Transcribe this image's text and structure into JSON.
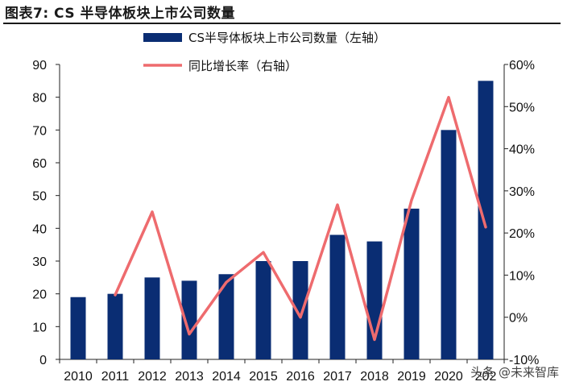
{
  "figure_title": "图表7:  CS 半导体板块上市公司数量",
  "watermark": "头条 @未来智库",
  "colors": {
    "bar": "#0a2d73",
    "line": "#ee6b6e",
    "axis": "#222222"
  },
  "chart_data": {
    "type": "bar",
    "categories": [
      "2010",
      "2011",
      "2012",
      "2013",
      "2014",
      "2015",
      "2016",
      "2017",
      "2018",
      "2019",
      "2020",
      "2021"
    ],
    "x_tick_labels": [
      "2010",
      "2011",
      "2012",
      "2013",
      "2014",
      "2015",
      "2016",
      "2017",
      "2018",
      "2019",
      "2020",
      "202"
    ],
    "series": [
      {
        "name": "CS半导体板块上市公司数量（左轴）",
        "type": "bar",
        "axis": "left",
        "values": [
          19,
          20,
          25,
          24,
          26,
          30,
          30,
          38,
          36,
          46,
          70,
          85
        ]
      },
      {
        "name": "同比增长率（右轴）",
        "type": "line",
        "axis": "right",
        "values": [
          null,
          5.3,
          25.0,
          -4.0,
          8.3,
          15.4,
          0.0,
          26.7,
          -5.3,
          27.8,
          52.2,
          21.4
        ]
      }
    ],
    "left_axis": {
      "ylim": [
        0,
        90
      ],
      "ticks": [
        "0",
        "10",
        "20",
        "30",
        "40",
        "50",
        "60",
        "70",
        "80",
        "90"
      ]
    },
    "right_axis": {
      "ylim": [
        -10,
        60
      ],
      "ticks": [
        "-10%",
        "0%",
        "10%",
        "20%",
        "30%",
        "40%",
        "50%",
        "60%"
      ]
    },
    "legend_position": "top-center",
    "grid": false
  }
}
